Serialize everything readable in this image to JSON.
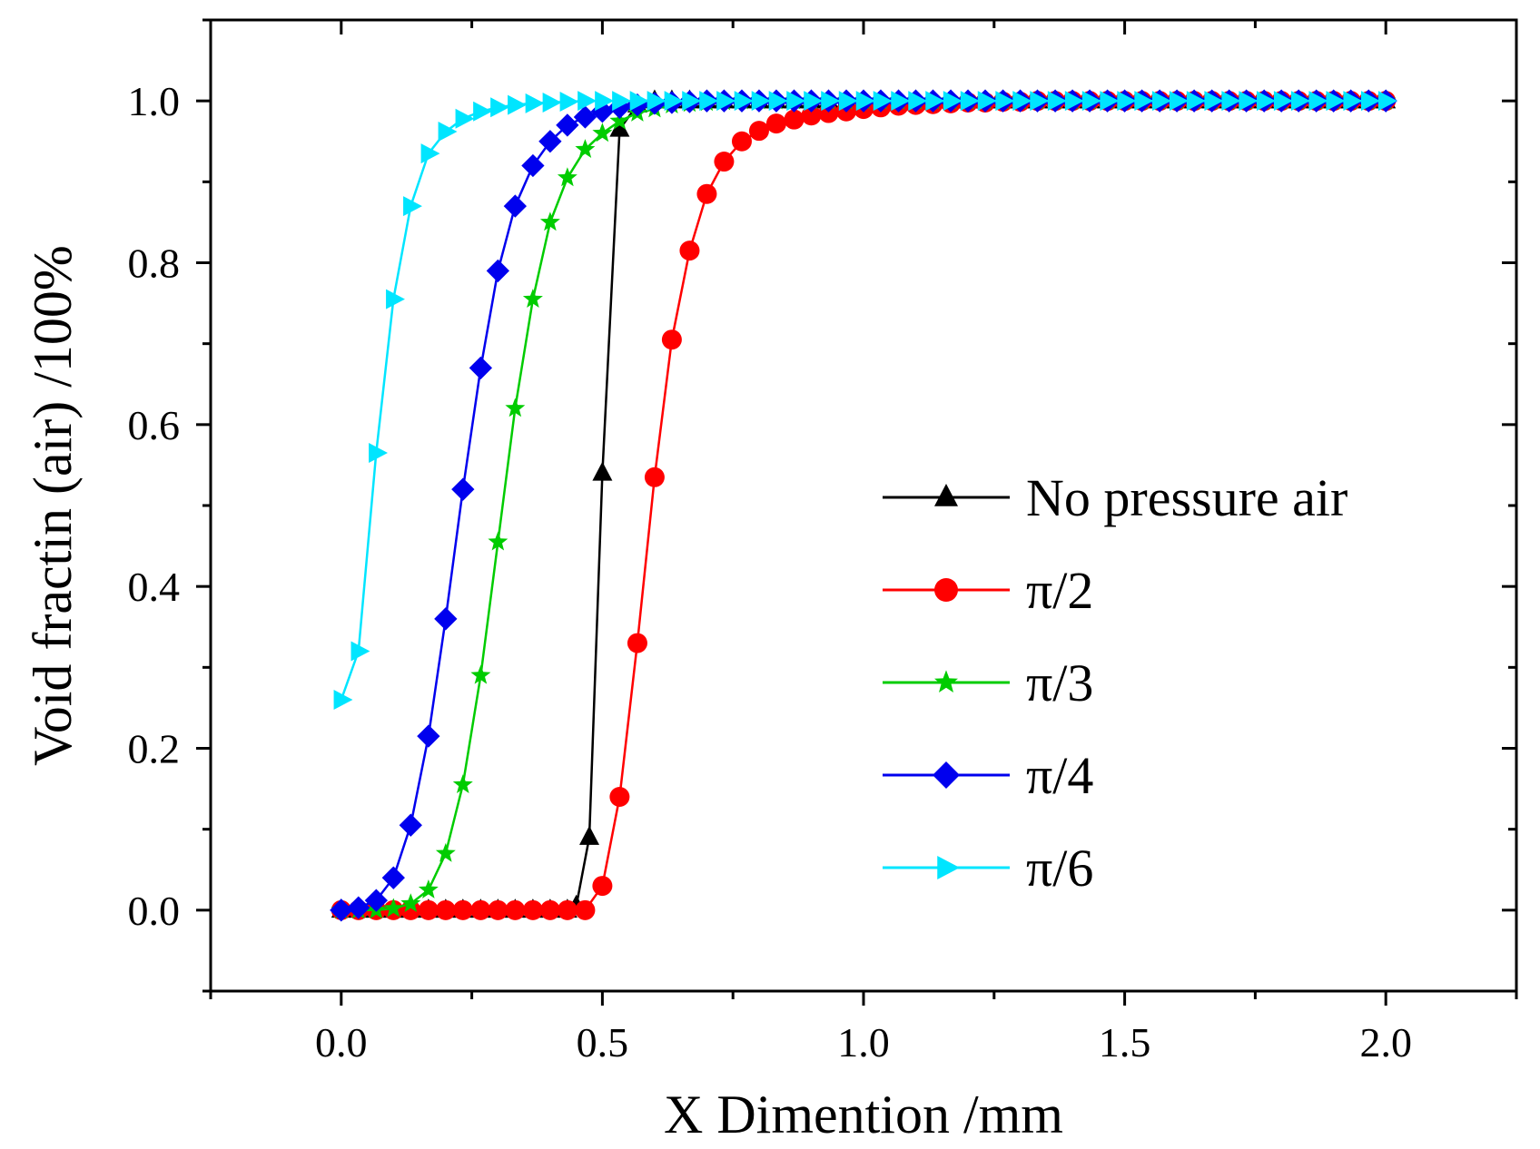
{
  "chart_data": {
    "type": "line",
    "title": "",
    "xlabel": "X Dimention /mm",
    "ylabel": "Void fractin (air) /100%",
    "xlim": [
      -0.25,
      2.25
    ],
    "ylim": [
      -0.1,
      1.1
    ],
    "xticks": [
      "0.0",
      "0.5",
      "1.0",
      "1.5",
      "2.0"
    ],
    "yticks": [
      "0.0",
      "0.2",
      "0.4",
      "0.6",
      "0.8",
      "1.0"
    ],
    "grid": false,
    "legend_position": "center-right",
    "series": [
      {
        "name": "No pressure air",
        "color": "#000000",
        "marker": "triangle-up",
        "x": [
          0.0,
          0.033,
          0.067,
          0.1,
          0.133,
          0.167,
          0.2,
          0.233,
          0.267,
          0.3,
          0.333,
          0.367,
          0.4,
          0.433,
          0.45,
          0.475,
          0.5,
          0.533,
          0.567,
          0.6,
          0.633,
          0.667,
          0.7,
          0.733,
          0.767,
          0.8,
          0.833,
          0.867,
          0.9,
          0.933,
          0.967,
          1.0,
          1.033,
          1.067,
          1.1,
          1.133,
          1.167,
          1.2,
          1.233,
          1.267,
          1.3,
          1.333,
          1.367,
          1.4,
          1.433,
          1.467,
          1.5,
          1.533,
          1.567,
          1.6,
          1.633,
          1.667,
          1.7,
          1.733,
          1.767,
          1.8,
          1.833,
          1.867,
          1.9,
          1.933,
          1.967,
          2.0
        ],
        "y": [
          0,
          0,
          0,
          0,
          0,
          0,
          0,
          0,
          0,
          0,
          0,
          0,
          0,
          0,
          0.005,
          0.09,
          0.54,
          0.965,
          0.995,
          1,
          1,
          1,
          1,
          1,
          1,
          1,
          1,
          1,
          1,
          1,
          1,
          1,
          1,
          1,
          1,
          1,
          1,
          1,
          1,
          1,
          1,
          1,
          1,
          1,
          1,
          1,
          1,
          1,
          1,
          1,
          1,
          1,
          1,
          1,
          1,
          1,
          1,
          1,
          1,
          1,
          1,
          1
        ]
      },
      {
        "name": "π/2",
        "color": "#ff0000",
        "marker": "circle",
        "x": [
          0.0,
          0.033,
          0.067,
          0.1,
          0.133,
          0.167,
          0.2,
          0.233,
          0.267,
          0.3,
          0.333,
          0.367,
          0.4,
          0.433,
          0.467,
          0.5,
          0.533,
          0.567,
          0.6,
          0.633,
          0.667,
          0.7,
          0.733,
          0.767,
          0.8,
          0.833,
          0.867,
          0.9,
          0.933,
          0.967,
          1.0,
          1.033,
          1.067,
          1.1,
          1.133,
          1.167,
          1.2,
          1.233,
          1.267,
          1.3,
          1.333,
          1.367,
          1.4,
          1.433,
          1.467,
          1.5,
          1.533,
          1.567,
          1.6,
          1.633,
          1.667,
          1.7,
          1.733,
          1.767,
          1.8,
          1.833,
          1.867,
          1.9,
          1.933,
          1.967,
          2.0
        ],
        "y": [
          0,
          0,
          0,
          0,
          0,
          0,
          0,
          0,
          0,
          0,
          0,
          0,
          0,
          0,
          0,
          0.03,
          0.14,
          0.33,
          0.535,
          0.705,
          0.815,
          0.885,
          0.925,
          0.95,
          0.963,
          0.972,
          0.977,
          0.982,
          0.985,
          0.987,
          0.99,
          0.992,
          0.994,
          0.995,
          0.996,
          0.997,
          0.998,
          0.998,
          0.999,
          0.999,
          1,
          1,
          1,
          1,
          1,
          1,
          1,
          1,
          1,
          1,
          1,
          1,
          1,
          1,
          1,
          1,
          1,
          1,
          1,
          1,
          1
        ]
      },
      {
        "name": "π/3",
        "color": "#00cc00",
        "marker": "star",
        "x": [
          0.0,
          0.033,
          0.067,
          0.1,
          0.133,
          0.167,
          0.2,
          0.233,
          0.267,
          0.3,
          0.333,
          0.367,
          0.4,
          0.433,
          0.467,
          0.5,
          0.533,
          0.567,
          0.6,
          0.633,
          0.667,
          0.7,
          0.733,
          0.767,
          0.8,
          0.833,
          0.867,
          0.9,
          0.933,
          0.967,
          1.0,
          1.033,
          1.067,
          1.1,
          1.133,
          1.167,
          1.2,
          1.233,
          1.267,
          1.3,
          1.333,
          1.367,
          1.4,
          1.433,
          1.467,
          1.5,
          1.533,
          1.567,
          1.6,
          1.633,
          1.667,
          1.7,
          1.733,
          1.767,
          1.8,
          1.833,
          1.867,
          1.9,
          1.933,
          1.967,
          2.0
        ],
        "y": [
          0,
          0,
          0,
          0.002,
          0.008,
          0.025,
          0.07,
          0.155,
          0.29,
          0.455,
          0.62,
          0.755,
          0.85,
          0.905,
          0.94,
          0.96,
          0.975,
          0.985,
          0.99,
          0.995,
          0.997,
          0.998,
          0.999,
          1,
          1,
          1,
          1,
          1,
          1,
          1,
          1,
          1,
          1,
          1,
          1,
          1,
          1,
          1,
          1,
          1,
          1,
          1,
          1,
          1,
          1,
          1,
          1,
          1,
          1,
          1,
          1,
          1,
          1,
          1,
          1,
          1,
          1,
          1,
          1,
          1,
          1
        ]
      },
      {
        "name": "π/4",
        "color": "#0000ee",
        "marker": "diamond",
        "x": [
          0.0,
          0.033,
          0.067,
          0.1,
          0.133,
          0.167,
          0.2,
          0.233,
          0.267,
          0.3,
          0.333,
          0.367,
          0.4,
          0.433,
          0.467,
          0.5,
          0.533,
          0.567,
          0.6,
          0.633,
          0.667,
          0.7,
          0.733,
          0.767,
          0.8,
          0.833,
          0.867,
          0.9,
          0.933,
          0.967,
          1.0,
          1.033,
          1.067,
          1.1,
          1.133,
          1.167,
          1.2,
          1.233,
          1.267,
          1.3,
          1.333,
          1.367,
          1.4,
          1.433,
          1.467,
          1.5,
          1.533,
          1.567,
          1.6,
          1.633,
          1.667,
          1.7,
          1.733,
          1.767,
          1.8,
          1.833,
          1.867,
          1.9,
          1.933,
          1.967,
          2.0
        ],
        "y": [
          0,
          0.003,
          0.012,
          0.04,
          0.105,
          0.215,
          0.36,
          0.52,
          0.67,
          0.79,
          0.87,
          0.92,
          0.95,
          0.97,
          0.98,
          0.987,
          0.992,
          0.995,
          0.997,
          0.998,
          0.999,
          1,
          1,
          1,
          1,
          1,
          1,
          1,
          1,
          1,
          1,
          1,
          1,
          1,
          1,
          1,
          1,
          1,
          1,
          1,
          1,
          1,
          1,
          1,
          1,
          1,
          1,
          1,
          1,
          1,
          1,
          1,
          1,
          1,
          1,
          1,
          1,
          1,
          1,
          1,
          1
        ]
      },
      {
        "name": "π/6",
        "color": "#00e5ff",
        "marker": "triangle-right",
        "x": [
          0.0,
          0.033,
          0.067,
          0.1,
          0.133,
          0.167,
          0.2,
          0.233,
          0.267,
          0.3,
          0.333,
          0.367,
          0.4,
          0.433,
          0.467,
          0.5,
          0.533,
          0.567,
          0.6,
          0.633,
          0.667,
          0.7,
          0.733,
          0.767,
          0.8,
          0.833,
          0.867,
          0.9,
          0.933,
          0.967,
          1.0,
          1.033,
          1.067,
          1.1,
          1.133,
          1.167,
          1.2,
          1.233,
          1.267,
          1.3,
          1.333,
          1.367,
          1.4,
          1.433,
          1.467,
          1.5,
          1.533,
          1.567,
          1.6,
          1.633,
          1.667,
          1.7,
          1.733,
          1.767,
          1.8,
          1.833,
          1.867,
          1.9,
          1.933,
          1.967,
          2.0
        ],
        "y": [
          0.26,
          0.32,
          0.565,
          0.755,
          0.87,
          0.935,
          0.962,
          0.978,
          0.987,
          0.992,
          0.995,
          0.997,
          0.998,
          0.999,
          1,
          1,
          1,
          1,
          1,
          1,
          1,
          1,
          1,
          1,
          1,
          1,
          1,
          1,
          1,
          1,
          1,
          1,
          1,
          1,
          1,
          1,
          1,
          1,
          1,
          1,
          1,
          1,
          1,
          1,
          1,
          1,
          1,
          1,
          1,
          1,
          1,
          1,
          1,
          1,
          1,
          1,
          1,
          1,
          1,
          1,
          1
        ]
      }
    ]
  }
}
